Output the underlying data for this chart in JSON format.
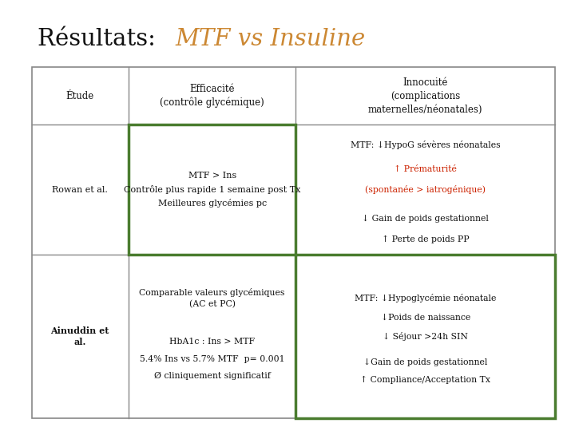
{
  "title_black": "Résultats: ",
  "title_orange": "MTF vs Insuline",
  "bg_color": "#ffffff",
  "border_color": "#888888",
  "green_border": "#4a7c2f",
  "orange_color": "#cc8833",
  "red_color": "#cc2200",
  "black_color": "#111111",
  "row1_col2": "MTF > Ins\nContrôle plus rapide 1 semaine post Tx\nMeilleures glycémies pc",
  "row1_col1": "Rowan et al.",
  "row2_col1": "Ainuddin et\nal."
}
